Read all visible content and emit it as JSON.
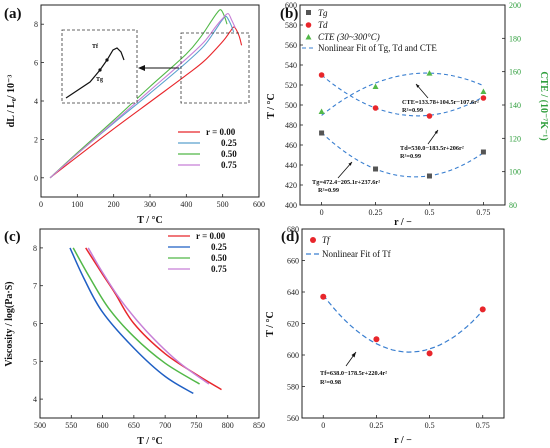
{
  "chart_data": [
    {
      "id": "a",
      "panel_label": "(a)",
      "type": "line",
      "xlabel": "T / °C",
      "ylabel": "dL / L₀/ 10⁻³",
      "xlim": [
        0,
        600
      ],
      "ylim": [
        -1,
        9
      ],
      "xticks": [
        0,
        100,
        200,
        300,
        400,
        500,
        600
      ],
      "yticks": [
        0,
        2,
        4,
        6,
        8
      ],
      "legend_position": "bottom-right",
      "legend_title_prefix": "r = ",
      "inset_labels": {
        "tg": "Tg",
        "tf": "Tf"
      },
      "series": [
        {
          "name": "0.00",
          "color": "#e8262b",
          "x": [
            25,
            100,
            200,
            300,
            400,
            450,
            500,
            520,
            532,
            545,
            552
          ],
          "y": [
            0,
            1.1,
            2.55,
            3.95,
            5.35,
            6.1,
            7.1,
            7.6,
            7.85,
            7.4,
            6.9
          ]
        },
        {
          "name": "0.25",
          "color": "#5aa0ce",
          "x": [
            25,
            100,
            200,
            300,
            400,
            450,
            480,
            500,
            510,
            522,
            530
          ],
          "y": [
            0,
            1.25,
            2.85,
            4.4,
            6.0,
            6.9,
            7.7,
            8.25,
            8.4,
            8.0,
            7.6
          ]
        },
        {
          "name": "0.50",
          "color": "#52b848",
          "x": [
            25,
            100,
            200,
            300,
            400,
            440,
            470,
            485,
            495,
            505,
            512
          ],
          "y": [
            0,
            1.3,
            3.0,
            4.75,
            6.45,
            7.35,
            8.2,
            8.6,
            8.75,
            8.4,
            8.0
          ]
        },
        {
          "name": "0.75",
          "color": "#c77fd6",
          "x": [
            25,
            100,
            200,
            300,
            400,
            450,
            480,
            500,
            515,
            525,
            535
          ],
          "y": [
            0,
            1.25,
            2.9,
            4.55,
            6.2,
            7.1,
            7.85,
            8.3,
            8.55,
            8.2,
            7.8
          ]
        }
      ]
    },
    {
      "id": "b",
      "panel_label": "(b)",
      "type": "scatter",
      "xlabel": "r / −",
      "ylabel": "T / °C",
      "y2label": "CTE / (10⁻⁷K⁻¹)",
      "xlim": [
        -0.1,
        0.85
      ],
      "ylim": [
        400,
        600
      ],
      "y2lim": [
        80,
        200
      ],
      "xticks": [
        0,
        0.25,
        0.5,
        0.75
      ],
      "xticklabels": [
        "0",
        "0.25",
        "0.5",
        "0.75"
      ],
      "yticks": [
        400,
        420,
        440,
        460,
        480,
        500,
        520,
        540,
        560,
        580,
        600
      ],
      "y2ticks": [
        80,
        100,
        120,
        140,
        160,
        180,
        200
      ],
      "legend_position": "top-left",
      "r": [
        0,
        0.25,
        0.5,
        0.75
      ],
      "tg": {
        "name": "Tg",
        "color": "#555555",
        "values": [
          472,
          436,
          429,
          453
        ]
      },
      "td": {
        "name": "Td",
        "color": "#e8262b",
        "values": [
          530,
          497,
          489,
          507
        ]
      },
      "cte": {
        "name": "CTE (30~300°C)",
        "color": "#52b848",
        "values": [
          136,
          151,
          159,
          148
        ]
      },
      "fit": {
        "name": "Nonlinear Fit of Tg, Td and CTE",
        "color": "#3a7fd0"
      },
      "fits": {
        "tg": {
          "intercept": 472.4,
          "b": -205.1,
          "c": 237.6,
          "label": "Tg=472.4−205.1r+237.6r²",
          "r2": "R²=0.99"
        },
        "td": {
          "intercept": 530.0,
          "b": -183.5,
          "c": 206,
          "label": "Td=530.0−183.5r+206r²",
          "r2": "R²=0.99"
        },
        "cte": {
          "intercept": 133.78,
          "b": 104.5,
          "c": -107.6,
          "label": "CTE=133.78+104.5r−107.6r²",
          "r2": "R²=0.99"
        }
      }
    },
    {
      "id": "c",
      "panel_label": "(c)",
      "type": "line",
      "xlabel": "T / °C",
      "ylabel": "Viscosity / log(Pa·S)",
      "xlim": [
        500,
        850
      ],
      "ylim": [
        3.5,
        8.5
      ],
      "xticks": [
        500,
        550,
        600,
        650,
        700,
        750,
        800,
        850
      ],
      "yticks": [
        4,
        5,
        6,
        7,
        8
      ],
      "legend_position": "top-right",
      "legend_title_prefix": "r = ",
      "series": [
        {
          "name": "0.00",
          "color": "#e8262b",
          "x": [
            573,
            600,
            620,
            650,
            700,
            750,
            790
          ],
          "y": [
            8.0,
            7.3,
            6.8,
            6.0,
            5.2,
            4.65,
            4.25
          ]
        },
        {
          "name": "0.25",
          "color": "#1f5fc4",
          "x": [
            548,
            570,
            600,
            650,
            700,
            745
          ],
          "y": [
            8.0,
            7.2,
            6.3,
            5.35,
            4.6,
            4.15
          ]
        },
        {
          "name": "0.50",
          "color": "#52b848",
          "x": [
            553,
            580,
            610,
            650,
            700,
            755
          ],
          "y": [
            8.0,
            7.2,
            6.4,
            5.65,
            4.95,
            4.4
          ]
        },
        {
          "name": "0.75",
          "color": "#c77fd6",
          "x": [
            577,
            600,
            630,
            670,
            720,
            770
          ],
          "y": [
            8.0,
            7.35,
            6.6,
            5.8,
            5.0,
            4.4
          ]
        }
      ]
    },
    {
      "id": "d",
      "panel_label": "(d)",
      "type": "scatter",
      "xlabel": "r / −",
      "ylabel": "T / °C",
      "xlim": [
        -0.1,
        0.85
      ],
      "ylim": [
        560,
        680
      ],
      "xticks": [
        0,
        0.25,
        0.5,
        0.75
      ],
      "xticklabels": [
        "0",
        "0.25",
        "0.5",
        "0.75"
      ],
      "yticks": [
        560,
        580,
        600,
        620,
        640,
        660,
        680
      ],
      "legend_position": "top-left",
      "r": [
        0,
        0.25,
        0.5,
        0.75
      ],
      "tf": {
        "name": "Tf",
        "color": "#e8262b",
        "values": [
          637,
          610,
          601,
          629
        ]
      },
      "fit": {
        "name": "Nonlinear Fit of Tf",
        "color": "#3a7fd0",
        "intercept": 638.0,
        "b": -178.5,
        "c": 220.4,
        "label": "Tf=638.0−178.5r+220.4r²",
        "r2": "R²=0.98"
      }
    }
  ]
}
